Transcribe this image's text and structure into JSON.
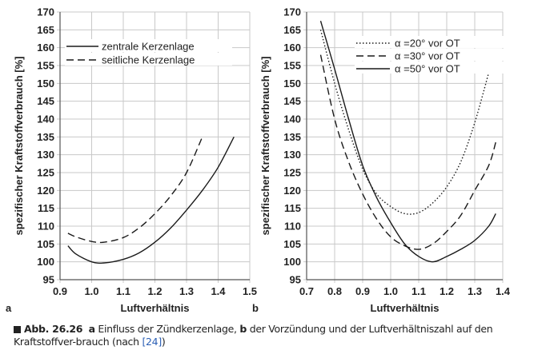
{
  "caption": {
    "label": "Abb. 26.26",
    "part_a": "a",
    "text_a": " Einfluss der Zündkerzenlage, ",
    "part_b": "b",
    "text_b": " der Vorzündung und der Luftverhältniszahl auf den Kraftstoffver-brauch (nach ",
    "ref": "[24]",
    "end": ")"
  },
  "chart_data": [
    {
      "type": "line",
      "panel_label": "a",
      "xlabel": "Luftverhältnis",
      "ylabel": "spezifischer Kraftstoffverbrauch [%]",
      "xlim": [
        0.9,
        1.5
      ],
      "ylim": [
        95,
        170
      ],
      "xticks": [
        "0.9",
        "1.0",
        "1.1",
        "1.2",
        "1.3",
        "1.4",
        "1.5"
      ],
      "yticks": [
        "95",
        "100",
        "105",
        "110",
        "115",
        "120",
        "125",
        "130",
        "135",
        "140",
        "145",
        "150",
        "155",
        "160",
        "165",
        "170"
      ],
      "grid": true,
      "legend_position": "top-left",
      "series": [
        {
          "name": "zentrale Kerzenlage",
          "style": "solid",
          "points": [
            [
              0.925,
              104.5
            ],
            [
              0.95,
              102.2
            ],
            [
              1.0,
              100.0
            ],
            [
              1.04,
              99.7
            ],
            [
              1.1,
              100.7
            ],
            [
              1.15,
              102.5
            ],
            [
              1.2,
              105.5
            ],
            [
              1.25,
              109.5
            ],
            [
              1.3,
              114.5
            ],
            [
              1.35,
              120
            ],
            [
              1.4,
              126.5
            ],
            [
              1.45,
              135
            ]
          ]
        },
        {
          "name": "seitliche Kerzenlage",
          "style": "dashed",
          "points": [
            [
              0.925,
              108
            ],
            [
              0.95,
              107
            ],
            [
              1.0,
              105.7
            ],
            [
              1.04,
              105.5
            ],
            [
              1.1,
              106.8
            ],
            [
              1.15,
              109.5
            ],
            [
              1.2,
              113.5
            ],
            [
              1.25,
              118.5
            ],
            [
              1.3,
              125
            ],
            [
              1.35,
              135
            ]
          ]
        }
      ]
    },
    {
      "type": "line",
      "panel_label": "b",
      "xlabel": "Luftverhältnis",
      "ylabel": "spezifischer Kraftstoffverbrauch [%]",
      "xlim": [
        0.7,
        1.4
      ],
      "ylim": [
        95,
        170
      ],
      "xticks": [
        "0.7",
        "0.8",
        "0.9",
        "1.0",
        "1.1",
        "1.2",
        "1.3",
        "1.4"
      ],
      "yticks": [
        "95",
        "100",
        "105",
        "110",
        "115",
        "120",
        "125",
        "130",
        "135",
        "140",
        "145",
        "150",
        "155",
        "160",
        "165",
        "170"
      ],
      "grid": true,
      "legend_position": "top-center",
      "series": [
        {
          "name": "α =20° vor OT",
          "style": "dotted",
          "points": [
            [
              0.75,
              165
            ],
            [
              0.8,
              150
            ],
            [
              0.85,
              137
            ],
            [
              0.9,
              126
            ],
            [
              0.95,
              119
            ],
            [
              1.0,
              115.5
            ],
            [
              1.05,
              113.5
            ],
            [
              1.1,
              113.8
            ],
            [
              1.15,
              116.5
            ],
            [
              1.2,
              121
            ],
            [
              1.25,
              128
            ],
            [
              1.3,
              139
            ],
            [
              1.35,
              153
            ]
          ]
        },
        {
          "name": "α =30° vor OT",
          "style": "dashed",
          "points": [
            [
              0.75,
              158
            ],
            [
              0.8,
              140
            ],
            [
              0.85,
              128
            ],
            [
              0.9,
              119
            ],
            [
              0.95,
              112
            ],
            [
              1.0,
              107
            ],
            [
              1.05,
              104.5
            ],
            [
              1.1,
              103.5
            ],
            [
              1.15,
              105
            ],
            [
              1.2,
              108.5
            ],
            [
              1.25,
              113
            ],
            [
              1.3,
              120
            ],
            [
              1.35,
              127
            ],
            [
              1.375,
              133.5
            ]
          ]
        },
        {
          "name": "α =50° vor OT",
          "style": "solid",
          "points": [
            [
              0.75,
              167.5
            ],
            [
              0.8,
              154
            ],
            [
              0.85,
              140
            ],
            [
              0.9,
              127
            ],
            [
              0.95,
              118
            ],
            [
              1.0,
              111
            ],
            [
              1.05,
              105
            ],
            [
              1.1,
              101.5
            ],
            [
              1.15,
              100
            ],
            [
              1.2,
              101.5
            ],
            [
              1.25,
              103.5
            ],
            [
              1.3,
              106
            ],
            [
              1.35,
              110
            ],
            [
              1.375,
              113.5
            ]
          ]
        }
      ]
    }
  ]
}
